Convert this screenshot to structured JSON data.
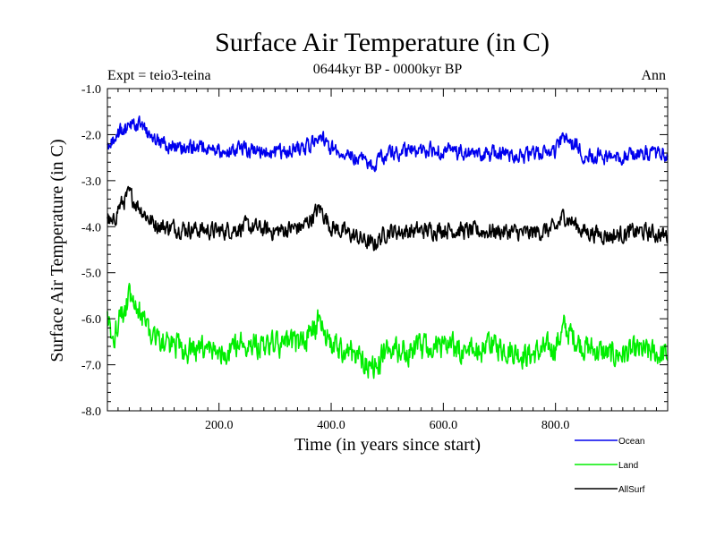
{
  "chart_data": {
    "type": "line",
    "title": "Surface Air Temperature (in C)",
    "subtitle": "0644kyr BP - 0000kyr BP",
    "expt_label": "Expt = teio3-teina",
    "season_label": "Ann",
    "xlabel": "Time (in years since start)",
    "ylabel": "Surface Air Temperature (in C)",
    "xlim": [
      1,
      1000
    ],
    "ylim": [
      -8.0,
      -1.0
    ],
    "x_ticks": [
      200,
      400,
      600,
      800
    ],
    "x_tick_labels": [
      "200.0",
      "400.0",
      "600.0",
      "800.0"
    ],
    "y_ticks": [
      -1,
      -2,
      -3,
      -4,
      -5,
      -6,
      -7,
      -8
    ],
    "y_tick_labels": [
      "-1.0",
      "-2.0",
      "-3.0",
      "-4.0",
      "-5.0",
      "-6.0",
      "-7.0",
      "-8.0"
    ],
    "grid": false,
    "legend_position": "bottom-right",
    "series": [
      {
        "name": "Ocean",
        "color": "#0000ee",
        "x": [
          1,
          20,
          40,
          60,
          80,
          100,
          150,
          200,
          250,
          300,
          350,
          380,
          400,
          450,
          475,
          500,
          550,
          600,
          650,
          700,
          750,
          800,
          815,
          850,
          900,
          950,
          1000
        ],
        "values": [
          -2.25,
          -1.95,
          -1.85,
          -1.8,
          -2.05,
          -2.2,
          -2.3,
          -2.35,
          -2.35,
          -2.4,
          -2.3,
          -2.05,
          -2.3,
          -2.5,
          -2.65,
          -2.4,
          -2.35,
          -2.35,
          -2.45,
          -2.4,
          -2.45,
          -2.35,
          -2.05,
          -2.4,
          -2.5,
          -2.4,
          -2.45
        ]
      },
      {
        "name": "Land",
        "color": "#00ee00",
        "x": [
          1,
          10,
          20,
          40,
          60,
          80,
          100,
          150,
          200,
          250,
          300,
          350,
          380,
          400,
          450,
          475,
          500,
          550,
          600,
          650,
          700,
          750,
          800,
          815,
          850,
          900,
          950,
          1000
        ],
        "values": [
          -6.0,
          -6.6,
          -6.0,
          -5.6,
          -5.9,
          -6.3,
          -6.5,
          -6.7,
          -6.7,
          -6.5,
          -6.6,
          -6.5,
          -6.0,
          -6.6,
          -6.8,
          -7.1,
          -6.7,
          -6.7,
          -6.6,
          -6.7,
          -6.6,
          -6.8,
          -6.6,
          -6.2,
          -6.6,
          -6.8,
          -6.7,
          -6.8
        ]
      },
      {
        "name": "AllSurf",
        "color": "#000000",
        "x": [
          1,
          10,
          20,
          40,
          60,
          80,
          100,
          150,
          200,
          250,
          300,
          350,
          380,
          400,
          450,
          475,
          500,
          550,
          600,
          650,
          700,
          750,
          800,
          815,
          850,
          900,
          950,
          1000
        ],
        "values": [
          -3.8,
          -4.0,
          -3.6,
          -3.3,
          -3.6,
          -3.9,
          -4.0,
          -4.05,
          -4.1,
          -4.0,
          -4.1,
          -4.0,
          -3.6,
          -4.0,
          -4.25,
          -4.4,
          -4.1,
          -4.1,
          -4.05,
          -4.1,
          -4.1,
          -4.15,
          -4.05,
          -3.75,
          -4.1,
          -4.2,
          -4.1,
          -4.2
        ]
      }
    ]
  }
}
